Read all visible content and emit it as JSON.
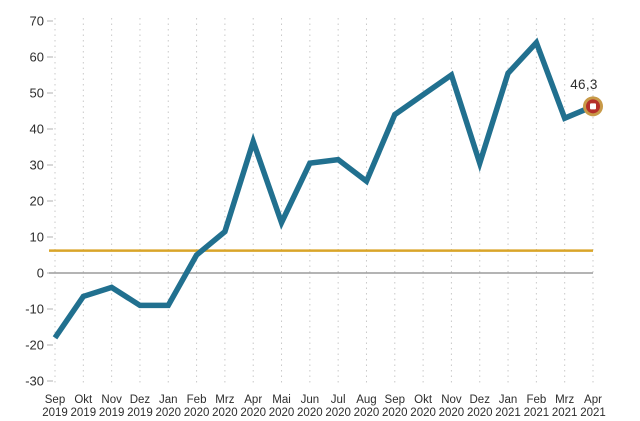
{
  "chart_data": {
    "type": "line",
    "title": "",
    "x_tick_labels": [
      [
        "Sep",
        "2019"
      ],
      [
        "Okt",
        "2019"
      ],
      [
        "Nov",
        "2019"
      ],
      [
        "Dez",
        "2019"
      ],
      [
        "Jan",
        "2020"
      ],
      [
        "Feb",
        "2020"
      ],
      [
        "Mrz",
        "2020"
      ],
      [
        "Apr",
        "2020"
      ],
      [
        "Mai",
        "2020"
      ],
      [
        "Jun",
        "2020"
      ],
      [
        "Jul",
        "2020"
      ],
      [
        "Aug",
        "2020"
      ],
      [
        "Sep",
        "2020"
      ],
      [
        "Okt",
        "2020"
      ],
      [
        "Nov",
        "2020"
      ],
      [
        "Dez",
        "2020"
      ],
      [
        "Jan",
        "2021"
      ],
      [
        "Feb",
        "2021"
      ],
      [
        "Mrz",
        "2021"
      ],
      [
        "Apr",
        "2021"
      ]
    ],
    "values": [
      -18,
      -6.5,
      -4,
      -9,
      -9,
      5,
      11.5,
      36.5,
      14,
      30.5,
      31.5,
      25.5,
      44,
      49.5,
      55,
      30.5,
      55.5,
      64,
      43,
      46.3
    ],
    "ylim": [
      -30,
      70
    ],
    "yticks": [
      70,
      60,
      50,
      40,
      30,
      20,
      10,
      0,
      -10,
      -20,
      -30
    ],
    "grid": "vertical-dashed",
    "legend": "none",
    "reference_lines": [
      {
        "name": "zero-reference-line",
        "value": 0,
        "color": "#9c9c9c"
      },
      {
        "name": "average-reference-line",
        "value": 6.2,
        "color": "#d9a529"
      }
    ],
    "annotation": {
      "label": "46,3",
      "value": 46.3,
      "index": 19
    },
    "colors": {
      "line": "#21708f",
      "marker_ring": "#c89a48",
      "marker_fill": "#b4302a",
      "marker_center": "#ffffff",
      "grid": "#c9c9c9",
      "tick": "#b0b0b0",
      "axis_text": "#2d2d2d"
    }
  }
}
